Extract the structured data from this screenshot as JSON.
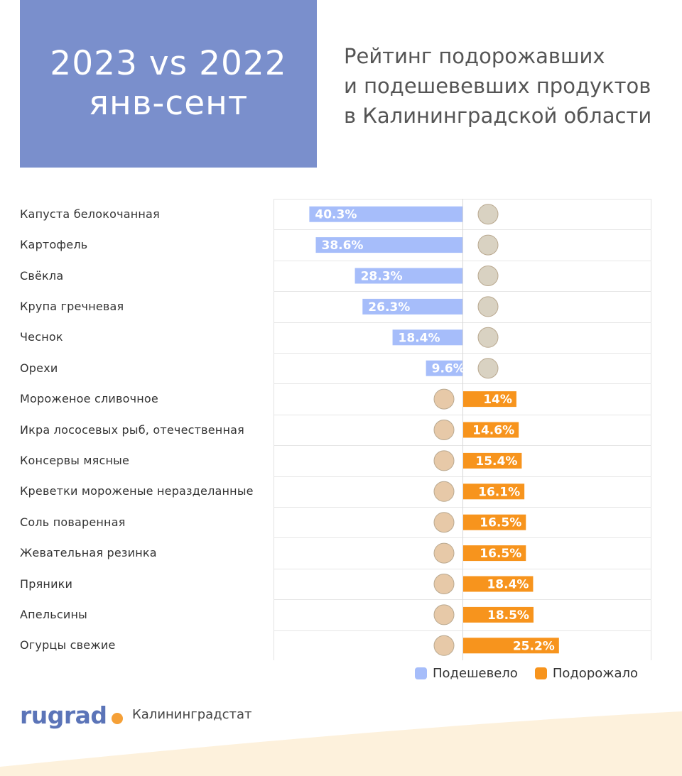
{
  "header": {
    "period_line1": "2023 vs 2022",
    "period_line2": "янв-сент",
    "subtitle_line1": "Рейтинг подорожавших",
    "subtitle_line2": "и подешевевших продуктов",
    "subtitle_line3": "в Калининградской области"
  },
  "legend": {
    "cheaper": "Подешевело",
    "pricier": "Подорожало"
  },
  "footer": {
    "brand": "rugrad",
    "source": "Калининградстат"
  },
  "colors": {
    "cheaper": "#a6bdfa",
    "pricier": "#f7941d",
    "header_box": "#7a8fcc",
    "brand": "#5b74b8",
    "wave": "#fdf1dc"
  },
  "chart_data": {
    "type": "bar",
    "orientation": "horizontal-diverging",
    "categories": [
      "Капуста белокочанная",
      "Картофель",
      "Свёкла",
      "Крупа гречневая",
      "Чеснок",
      "Орехи",
      "Мороженое сливочное",
      "Икра лососевых рыб, отечественная",
      "Консервы мясные",
      "Креветки мороженые неразделанные",
      "Соль поваренная",
      "Жевательная резинка",
      "Пряники",
      "Апельсины",
      "Огурцы свежие"
    ],
    "values": [
      -40.3,
      -38.6,
      -28.3,
      -26.3,
      -18.4,
      -9.6,
      14,
      14.6,
      15.4,
      16.1,
      16.5,
      16.5,
      18.4,
      18.5,
      25.2
    ],
    "value_labels": [
      "40.3%",
      "38.6%",
      "28.3%",
      "26.3%",
      "18.4%",
      "9.6%",
      "14%",
      "14.6%",
      "15.4%",
      "16.1%",
      "16.5%",
      "16.5%",
      "18.4%",
      "18.5%",
      "25.2%"
    ],
    "icons": [
      "cabbage-icon",
      "potato-icon",
      "beet-icon",
      "buckwheat-icon",
      "garlic-icon",
      "walnut-icon",
      "ice-cream-icon",
      "caviar-jar-icon",
      "canned-meat-icon",
      "shrimp-icon",
      "salt-icon",
      "chewing-gum-icon",
      "gingerbread-icon",
      "orange-icon",
      "cucumber-icon"
    ],
    "series_names": [
      "Подешевело",
      "Подорожало"
    ],
    "grid": true,
    "legend_position": "bottom-right"
  }
}
